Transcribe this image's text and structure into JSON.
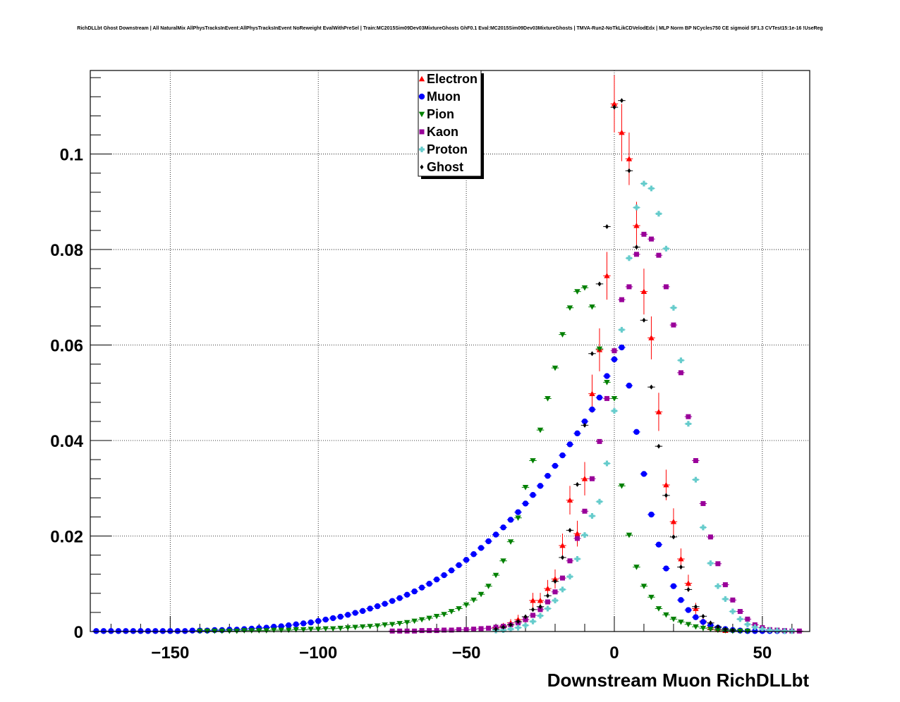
{
  "chart_data": {
    "type": "scatter",
    "title": "RichDLLbt Ghost Downstream | All NaturalMix AllPhysTracksInEvent:AllPhysTracksInEvent NoReweight EvalWithPreSel | Train:MC2015Sim09Dev03MixtureGhosts GhF0.1 Eval:MC2015Sim09Dev03MixtureGhosts | TMVA-Run2-NoTkLikCDVelodEdx | MLP Norm BP NCycles750 CE sigmoid SF1.3 CVTest15:1e-16 !UseReg",
    "xlabel": "Downstream Muon RichDLLbt",
    "ylabel": "",
    "xlim": [
      -177,
      66
    ],
    "ylim": [
      0,
      0.1175
    ],
    "grid": true,
    "legend_position": "top-center",
    "x_ticks": [
      -150,
      -100,
      -50,
      0,
      50
    ],
    "x_tick_labels": [
      "−150",
      "−100",
      "−50",
      "0",
      "50"
    ],
    "y_ticks": [
      0,
      0.02,
      0.04,
      0.06,
      0.08,
      0.1
    ],
    "y_tick_labels": [
      "0",
      "0.02",
      "0.04",
      "0.06",
      "0.08",
      "0.1"
    ],
    "series": [
      {
        "name": "Electron",
        "color": "#ff0000",
        "marker": "triangle-up",
        "x": [
          -40,
          -37.5,
          -35,
          -32.5,
          -30,
          -27.5,
          -25,
          -22.5,
          -20,
          -17.5,
          -15,
          -12.5,
          -10,
          -7.5,
          -5,
          -2.5,
          0,
          2.5,
          5,
          7.5,
          10,
          12.5,
          15,
          17.5,
          20,
          22.5,
          25,
          27.5,
          30,
          32.5,
          35,
          37.5
        ],
        "y": [
          0.0008,
          0.0012,
          0.0018,
          0.0025,
          0.0025,
          0.0065,
          0.0065,
          0.009,
          0.011,
          0.018,
          0.0275,
          0.0205,
          0.032,
          0.0498,
          0.059,
          0.0745,
          0.1105,
          0.1045,
          0.099,
          0.085,
          0.0712,
          0.0615,
          0.046,
          0.0307,
          0.023,
          0.0152,
          0.0101,
          0.0048,
          0.0022,
          0.0008,
          0.0004,
          0.0002
        ],
        "err": [
          0.0005,
          0.0006,
          0.0008,
          0.001,
          0.001,
          0.0016,
          0.0016,
          0.0018,
          0.002,
          0.0025,
          0.003,
          0.0027,
          0.0035,
          0.004,
          0.0045,
          0.005,
          0.006,
          0.006,
          0.0055,
          0.005,
          0.0048,
          0.0045,
          0.004,
          0.0032,
          0.0028,
          0.0022,
          0.0018,
          0.0012,
          0.0008,
          0.0005,
          0.0003,
          0.0002
        ]
      },
      {
        "name": "Muon",
        "color": "#0000ff",
        "marker": "circle",
        "x": [
          -175,
          -172.5,
          -170,
          -167.5,
          -165,
          -162.5,
          -160,
          -157.5,
          -155,
          -152.5,
          -150,
          -147.5,
          -145,
          -142.5,
          -140,
          -137.5,
          -135,
          -132.5,
          -130,
          -127.5,
          -125,
          -122.5,
          -120,
          -117.5,
          -115,
          -112.5,
          -110,
          -107.5,
          -105,
          -102.5,
          -100,
          -97.5,
          -95,
          -92.5,
          -90,
          -87.5,
          -85,
          -82.5,
          -80,
          -77.5,
          -75,
          -72.5,
          -70,
          -67.5,
          -65,
          -62.5,
          -60,
          -57.5,
          -55,
          -52.5,
          -50,
          -47.5,
          -45,
          -42.5,
          -40,
          -37.5,
          -35,
          -32.5,
          -30,
          -27.5,
          -25,
          -22.5,
          -20,
          -17.5,
          -15,
          -12.5,
          -10,
          -7.5,
          -5,
          -2.5,
          0,
          2.5,
          5,
          7.5,
          10,
          12.5,
          15,
          17.5,
          20,
          22.5,
          25,
          27.5,
          30,
          32.5,
          35,
          37.5,
          40,
          42.5,
          45,
          47.5,
          50,
          52.5,
          55,
          57.5
        ],
        "y": [
          0.0001,
          0.0001,
          0.0001,
          0.0001,
          0.0001,
          0.0001,
          0.0001,
          0.0001,
          0.0001,
          0.0001,
          0.0001,
          0.0001,
          0.0001,
          0.0002,
          0.0002,
          0.0002,
          0.0003,
          0.0003,
          0.0004,
          0.0004,
          0.0005,
          0.0006,
          0.0007,
          0.0008,
          0.001,
          0.0011,
          0.0013,
          0.0015,
          0.0017,
          0.0019,
          0.0022,
          0.0025,
          0.0028,
          0.0031,
          0.0035,
          0.0039,
          0.0043,
          0.0048,
          0.0053,
          0.0058,
          0.0064,
          0.007,
          0.0077,
          0.0084,
          0.0092,
          0.01,
          0.0109,
          0.0118,
          0.0128,
          0.0139,
          0.015,
          0.0162,
          0.0175,
          0.0189,
          0.0203,
          0.0218,
          0.0234,
          0.025,
          0.0268,
          0.0286,
          0.0305,
          0.0326,
          0.0347,
          0.0369,
          0.0392,
          0.0415,
          0.044,
          0.0465,
          0.049,
          0.0535,
          0.057,
          0.0595,
          0.0515,
          0.0418,
          0.033,
          0.0245,
          0.0182,
          0.0132,
          0.0095,
          0.0066,
          0.0045,
          0.003,
          0.002,
          0.0013,
          0.0008,
          0.0005,
          0.0003,
          0.0002,
          0.0001,
          0.0001,
          0.0001,
          0.0001,
          0.0001,
          0.0001
        ],
        "err": []
      },
      {
        "name": "Pion",
        "color": "#008000",
        "marker": "triangle-down",
        "x": [
          -140,
          -137.5,
          -135,
          -132.5,
          -130,
          -127.5,
          -125,
          -122.5,
          -120,
          -117.5,
          -115,
          -112.5,
          -110,
          -107.5,
          -105,
          -102.5,
          -100,
          -97.5,
          -95,
          -92.5,
          -90,
          -87.5,
          -85,
          -82.5,
          -80,
          -77.5,
          -75,
          -72.5,
          -70,
          -67.5,
          -65,
          -62.5,
          -60,
          -57.5,
          -55,
          -52.5,
          -50,
          -47.5,
          -45,
          -42.5,
          -40,
          -37.5,
          -35,
          -32.5,
          -30,
          -27.5,
          -25,
          -22.5,
          -20,
          -17.5,
          -15,
          -12.5,
          -10,
          -7.5,
          -5,
          -2.5,
          0,
          2.5,
          5,
          7.5,
          10,
          12.5,
          15,
          17.5,
          20,
          22.5,
          25,
          27.5,
          30,
          32.5,
          35,
          37.5,
          40,
          42.5,
          45
        ],
        "y": [
          0.0001,
          0.0001,
          0.0001,
          0.0001,
          0.0001,
          0.0001,
          0.0002,
          0.0002,
          0.0002,
          0.0002,
          0.0003,
          0.0003,
          0.0003,
          0.0004,
          0.0004,
          0.0005,
          0.0005,
          0.0006,
          0.0006,
          0.0007,
          0.0008,
          0.0009,
          0.001,
          0.0011,
          0.0012,
          0.0014,
          0.0015,
          0.0017,
          0.0019,
          0.0022,
          0.0025,
          0.0028,
          0.0032,
          0.0036,
          0.0042,
          0.0048,
          0.0056,
          0.0066,
          0.0078,
          0.0095,
          0.0118,
          0.0148,
          0.0188,
          0.0238,
          0.0302,
          0.0358,
          0.0422,
          0.0488,
          0.0552,
          0.0622,
          0.0678,
          0.0712,
          0.072,
          0.068,
          0.0592,
          0.0522,
          0.0488,
          0.0305,
          0.0202,
          0.0135,
          0.0095,
          0.0072,
          0.0048,
          0.0035,
          0.0026,
          0.002,
          0.0015,
          0.001,
          0.0007,
          0.0005,
          0.0003,
          0.0002,
          0.0001,
          0.0001,
          0.0001
        ],
        "err": []
      },
      {
        "name": "Kaon",
        "color": "#990099",
        "marker": "square",
        "x": [
          -75,
          -72.5,
          -70,
          -67.5,
          -65,
          -62.5,
          -60,
          -57.5,
          -55,
          -52.5,
          -50,
          -47.5,
          -45,
          -42.5,
          -40,
          -37.5,
          -35,
          -32.5,
          -30,
          -27.5,
          -25,
          -22.5,
          -20,
          -17.5,
          -15,
          -12.5,
          -10,
          -7.5,
          -5,
          -2.5,
          0,
          2.5,
          5,
          7.5,
          10,
          12.5,
          15,
          17.5,
          20,
          22.5,
          25,
          27.5,
          30,
          32.5,
          35,
          37.5,
          40,
          42.5,
          45,
          47.5,
          50,
          52.5,
          55,
          57.5,
          60,
          62.5
        ],
        "y": [
          0.0001,
          0.0001,
          0.0001,
          0.0001,
          0.0002,
          0.0002,
          0.0002,
          0.0003,
          0.0003,
          0.0004,
          0.0004,
          0.0005,
          0.0006,
          0.0007,
          0.0009,
          0.0011,
          0.0014,
          0.0018,
          0.0025,
          0.0034,
          0.0046,
          0.0062,
          0.0083,
          0.0112,
          0.0148,
          0.0195,
          0.0252,
          0.032,
          0.0398,
          0.0488,
          0.0588,
          0.0695,
          0.0722,
          0.079,
          0.0832,
          0.0822,
          0.0788,
          0.0722,
          0.0642,
          0.0542,
          0.045,
          0.0358,
          0.0268,
          0.0198,
          0.0142,
          0.0098,
          0.0066,
          0.0042,
          0.0026,
          0.0014,
          0.0008,
          0.0004,
          0.0003,
          0.0002,
          0.0001,
          0.0001
        ],
        "err": []
      },
      {
        "name": "Proton",
        "color": "#66cccc",
        "marker": "cross",
        "x": [
          -40,
          -37.5,
          -35,
          -32.5,
          -30,
          -27.5,
          -25,
          -22.5,
          -20,
          -17.5,
          -15,
          -12.5,
          -10,
          -7.5,
          -5,
          -2.5,
          0,
          2.5,
          5,
          7.5,
          10,
          12.5,
          15,
          17.5,
          20,
          22.5,
          25,
          27.5,
          30,
          32.5,
          35,
          37.5,
          40,
          42.5,
          45,
          47.5,
          50,
          52.5,
          55,
          57.5,
          60
        ],
        "y": [
          0.0002,
          0.0003,
          0.0005,
          0.0008,
          0.0013,
          0.0021,
          0.0033,
          0.0048,
          0.0065,
          0.0088,
          0.0115,
          0.0152,
          0.0202,
          0.0242,
          0.0272,
          0.0352,
          0.0462,
          0.0632,
          0.0782,
          0.0888,
          0.0938,
          0.0928,
          0.0875,
          0.0802,
          0.0678,
          0.0568,
          0.0435,
          0.0318,
          0.0218,
          0.0143,
          0.0095,
          0.0068,
          0.0042,
          0.0026,
          0.0015,
          0.0009,
          0.0005,
          0.0003,
          0.0002,
          0.0001,
          0.0001
        ],
        "err": []
      },
      {
        "name": "Ghost",
        "color": "#000000",
        "marker": "diamond",
        "x": [
          -40,
          -37.5,
          -35,
          -32.5,
          -30,
          -27.5,
          -25,
          -22.5,
          -20,
          -17.5,
          -15,
          -12.5,
          -10,
          -7.5,
          -5,
          -2.5,
          0,
          2.5,
          5,
          7.5,
          10,
          12.5,
          15,
          17.5,
          20,
          22.5,
          25,
          27.5,
          30,
          32.5,
          35,
          37.5,
          40
        ],
        "y": [
          0.0005,
          0.0009,
          0.0014,
          0.0021,
          0.0031,
          0.0046,
          0.0052,
          0.0075,
          0.0105,
          0.0155,
          0.0212,
          0.0308,
          0.0432,
          0.0582,
          0.0728,
          0.0848,
          0.1098,
          0.1112,
          0.0965,
          0.0805,
          0.0652,
          0.0512,
          0.0388,
          0.0285,
          0.0198,
          0.0135,
          0.0088,
          0.0052,
          0.0032,
          0.0018,
          0.001,
          0.0005,
          0.0003
        ],
        "err": []
      }
    ]
  }
}
